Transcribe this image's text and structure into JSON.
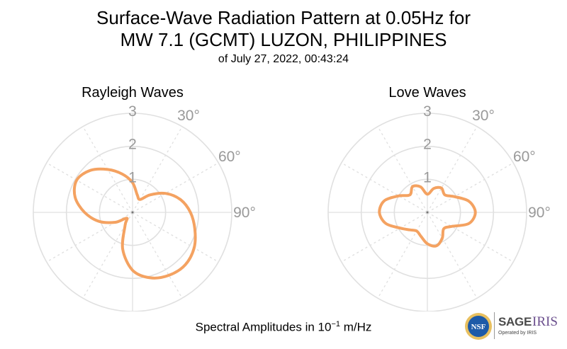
{
  "title_line1": "Surface-Wave Radiation Pattern at 0.05Hz for",
  "title_line2": "MW 7.1 (GCMT) LUZON, PHILIPPINES",
  "subtitle": "of July 27, 2022, 00:43:24",
  "footnote": {
    "prefix": "Spectral Amplitudes in ",
    "base": "10",
    "exponent": "−1",
    "unit": " m/Hz"
  },
  "logos": {
    "nsf": "NSF",
    "sage": "SAGE",
    "iris": "IRIS",
    "operated": "Operated by IRIS"
  },
  "colors": {
    "pattern": "#f4a261",
    "grid": "#e0e0e0",
    "label": "#999999"
  },
  "chart_data": [
    {
      "type": "polar-line",
      "title": "Rayleigh Waves",
      "r_ticks": [
        "1",
        "2",
        "3"
      ],
      "r_max": 3,
      "theta_ticks": [
        "30°",
        "60°",
        "90°"
      ],
      "grid": true,
      "series": [
        {
          "theta_deg": [
            0,
            15,
            30,
            45,
            60,
            75,
            90,
            105,
            120,
            135,
            150,
            165,
            180,
            195,
            210,
            225,
            240,
            255,
            270,
            285,
            300,
            315,
            330,
            345
          ],
          "r": [
            0.9,
            0.55,
            0.45,
            0.75,
            1.15,
            1.5,
            1.75,
            1.95,
            2.15,
            2.25,
            2.2,
            2.05,
            1.75,
            1.15,
            0.45,
            0.25,
            0.6,
            1.05,
            1.45,
            1.8,
            1.95,
            1.8,
            1.5,
            1.2
          ]
        }
      ]
    },
    {
      "type": "polar-line",
      "title": "Love Waves",
      "r_ticks": [
        "1",
        "2",
        "3"
      ],
      "r_max": 3,
      "theta_ticks": [
        "30°",
        "60°",
        "90°"
      ],
      "grid": true,
      "series": [
        {
          "theta_deg": [
            0,
            15,
            30,
            45,
            60,
            75,
            90,
            105,
            120,
            135,
            150,
            165,
            180,
            195,
            210,
            225,
            240,
            255,
            270,
            285,
            300,
            315,
            330,
            345
          ],
          "r": [
            0.55,
            0.75,
            0.85,
            0.75,
            0.95,
            1.3,
            1.45,
            1.3,
            0.85,
            0.7,
            0.9,
            1.05,
            0.95,
            0.75,
            0.65,
            0.75,
            0.95,
            1.3,
            1.45,
            1.35,
            1.0,
            0.75,
            0.9,
            0.8
          ]
        }
      ]
    }
  ]
}
